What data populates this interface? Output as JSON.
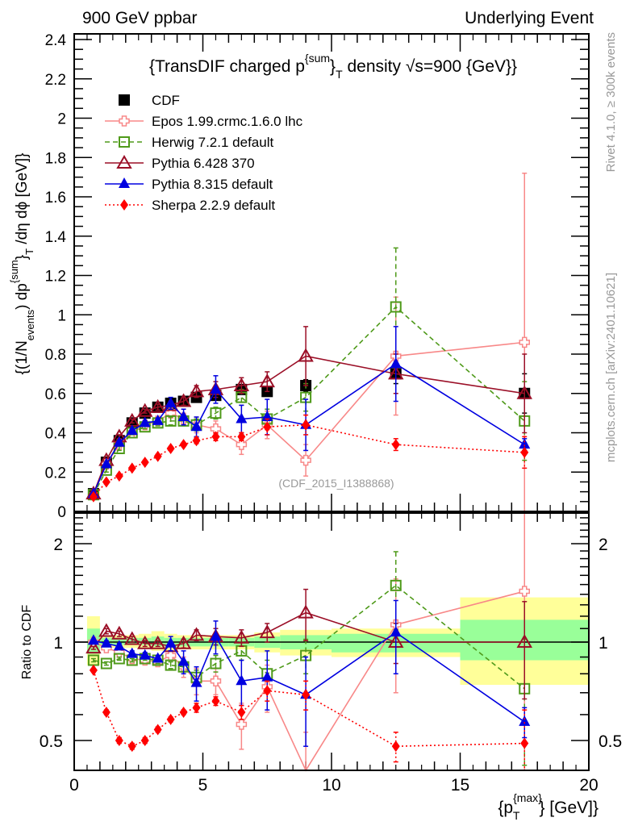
{
  "header": {
    "left_label": "900 GeV ppbar",
    "right_label": "Underlying Event"
  },
  "side_labels": {
    "rivet": "Rivet 4.1.0, ≥ 300k events",
    "mcplots": "mcplots.cern.ch [arXiv:2401.10621]"
  },
  "chart_data": [
    {
      "type": "line",
      "panel": "main",
      "title": "{TransDIF charged p^{sum}_T density √s=900 {GeV}}",
      "title_parts": {
        "pre": "{TransDIF charged p",
        "sup": "{sum",
        "post1": "}",
        "sub": "T",
        "post2": " density √s=900 {GeV}}"
      },
      "xlabel": "{p_T^{max}} [GeV]",
      "ylabel": "{(1/N_events) dp^{sum}_T /dη dϕ [GeV]}",
      "ylabel_parts": {
        "a": "{(1/N",
        "a_sub": "events",
        "b": ") dp",
        "b_sup": "{sum",
        "c": "}",
        "c_sub": "T",
        "d": " /dη  dϕ [GeV]}"
      },
      "xlim": [
        0,
        20
      ],
      "ylim": [
        0,
        2.45
      ],
      "yticks": [
        "0",
        "0.2",
        "0.4",
        "0.6",
        "0.8",
        "1",
        "1.2",
        "1.4",
        "1.6",
        "1.8",
        "2",
        "2.2",
        "2.4"
      ],
      "ytick_values": [
        0,
        0.2,
        0.4,
        0.6,
        0.8,
        1.0,
        1.2,
        1.4,
        1.6,
        1.8,
        2.0,
        2.2,
        2.4
      ],
      "annotation": "(CDF_2015_I1388868)",
      "legend_position": "top-left",
      "x": [
        0.75,
        1.25,
        1.75,
        2.25,
        2.75,
        3.25,
        3.75,
        4.25,
        4.75,
        5.5,
        6.5,
        7.5,
        9.0,
        12.5,
        17.5
      ],
      "series": [
        {
          "name": "CDF",
          "color": "#000000",
          "marker": "square-filled",
          "line": "none",
          "values": [
            0.09,
            0.25,
            0.36,
            0.45,
            0.5,
            0.53,
            0.55,
            0.56,
            0.58,
            0.59,
            0.62,
            0.61,
            0.64,
            0.7,
            0.6
          ],
          "errors": [
            0.01,
            0.01,
            0.01,
            0.01,
            0.01,
            0.01,
            0.01,
            0.01,
            0.01,
            0.02,
            0.02,
            0.02,
            0.03,
            0.05,
            0.1
          ]
        },
        {
          "name": "Epos 1.99.crmc.1.6.0 lhc",
          "color": "#f88888",
          "marker": "cross-open",
          "line": "solid",
          "values": [
            0.085,
            0.24,
            0.34,
            0.4,
            0.44,
            0.46,
            0.5,
            0.47,
            0.44,
            0.42,
            0.34,
            0.44,
            0.26,
            0.79,
            0.86
          ],
          "errors": [
            0.01,
            0.01,
            0.01,
            0.01,
            0.01,
            0.015,
            0.02,
            0.03,
            0.04,
            0.04,
            0.05,
            0.07,
            0.08,
            0.3,
            0.86
          ]
        },
        {
          "name": "Herwig 7.2.1 default",
          "color": "#4f9a1a",
          "marker": "square-open",
          "line": "dashed",
          "values": [
            0.085,
            0.21,
            0.32,
            0.4,
            0.43,
            0.45,
            0.46,
            0.46,
            0.44,
            0.5,
            0.58,
            0.47,
            0.58,
            1.04,
            0.46
          ],
          "errors": [
            0.005,
            0.01,
            0.01,
            0.01,
            0.01,
            0.015,
            0.02,
            0.02,
            0.03,
            0.03,
            0.04,
            0.05,
            0.07,
            0.3,
            0.2
          ]
        },
        {
          "name": "Pythia 6.428 370",
          "color": "#9b0f27",
          "marker": "triangle-open",
          "line": "solid",
          "values": [
            0.09,
            0.26,
            0.38,
            0.46,
            0.51,
            0.53,
            0.54,
            0.56,
            0.61,
            0.62,
            0.64,
            0.66,
            0.79,
            0.7,
            0.6
          ],
          "errors": [
            0.005,
            0.01,
            0.01,
            0.01,
            0.01,
            0.015,
            0.02,
            0.02,
            0.03,
            0.04,
            0.04,
            0.05,
            0.15,
            0.1,
            0.2
          ]
        },
        {
          "name": "Pythia 8.315 default",
          "color": "#0000e0",
          "marker": "triangle-filled",
          "line": "solid",
          "values": [
            0.09,
            0.24,
            0.35,
            0.41,
            0.45,
            0.46,
            0.55,
            0.48,
            0.43,
            0.62,
            0.47,
            0.48,
            0.44,
            0.75,
            0.34
          ],
          "errors": [
            0.005,
            0.01,
            0.01,
            0.01,
            0.01,
            0.015,
            0.03,
            0.04,
            0.05,
            0.07,
            0.07,
            0.09,
            0.13,
            0.19,
            0.03
          ]
        },
        {
          "name": "Sherpa 2.2.9 default",
          "color": "#ff0000",
          "marker": "diamond-filled",
          "line": "dotted",
          "values": [
            0.075,
            0.15,
            0.18,
            0.22,
            0.25,
            0.28,
            0.32,
            0.34,
            0.36,
            0.38,
            0.38,
            0.43,
            0.44,
            0.34,
            0.3
          ],
          "errors": [
            0.005,
            0.005,
            0.005,
            0.005,
            0.01,
            0.01,
            0.01,
            0.01,
            0.015,
            0.02,
            0.02,
            0.04,
            0.05,
            0.03,
            0.08
          ]
        }
      ]
    },
    {
      "type": "line",
      "panel": "ratio",
      "ylabel": "Ratio to CDF",
      "xlabel": "{p_T^{max}} [GeV]",
      "xlabel_parts": {
        "pre": "{p",
        "sup": "{max",
        "sup_close": "}",
        "sub": "T",
        "post": "} [GeV]}"
      },
      "xlim": [
        0,
        20
      ],
      "ylim": [
        0.405,
        2.43
      ],
      "yscale": "log",
      "yticks": [
        "0.5",
        "1",
        "2"
      ],
      "ytick_values": [
        0.5,
        1,
        2
      ],
      "xticks": [
        "0",
        "5",
        "10",
        "15",
        "20"
      ],
      "xtick_values": [
        0,
        5,
        10,
        15,
        20
      ],
      "bands": {
        "bin_edges": [
          0.5,
          1.0,
          1.5,
          2.0,
          2.5,
          3.0,
          3.5,
          4.0,
          4.5,
          5.0,
          6.0,
          7.0,
          8.0,
          10.0,
          15.0,
          20.0
        ],
        "stat_lo": [
          0.92,
          0.98,
          0.98,
          0.98,
          0.98,
          0.97,
          0.97,
          0.97,
          0.97,
          0.97,
          0.97,
          0.96,
          0.95,
          0.93,
          0.88
        ],
        "stat_hi": [
          1.1,
          1.03,
          1.03,
          1.03,
          1.03,
          1.04,
          1.03,
          1.03,
          1.03,
          1.03,
          1.03,
          1.04,
          1.05,
          1.06,
          1.17
        ],
        "total_lo": [
          0.85,
          0.96,
          0.96,
          0.96,
          0.96,
          0.94,
          0.94,
          0.95,
          0.95,
          0.95,
          0.95,
          0.93,
          0.91,
          0.9,
          0.74
        ],
        "total_hi": [
          1.2,
          1.05,
          1.05,
          1.05,
          1.06,
          1.08,
          1.06,
          1.05,
          1.05,
          1.05,
          1.05,
          1.07,
          1.09,
          1.1,
          1.37
        ],
        "stat_color": "#99ff99",
        "total_color": "#ffff99"
      },
      "x": [
        0.75,
        1.25,
        1.75,
        2.25,
        2.75,
        3.25,
        3.75,
        4.25,
        4.75,
        5.5,
        6.5,
        7.5,
        9.0,
        12.5,
        17.5
      ],
      "series": [
        {
          "name": "Epos 1.99.crmc.1.6.0 lhc",
          "color": "#f88888",
          "marker": "cross-open",
          "line": "solid",
          "values": [
            1.0,
            0.96,
            0.93,
            0.89,
            0.88,
            0.87,
            0.91,
            0.84,
            0.76,
            0.76,
            0.56,
            0.73,
            0.4,
            1.13,
            1.43
          ],
          "errors": [
            0.01,
            0.02,
            0.02,
            0.02,
            0.02,
            0.02,
            0.03,
            0.06,
            0.07,
            0.07,
            0.09,
            0.12,
            0.13,
            0.43,
            1.4
          ]
        },
        {
          "name": "Herwig 7.2.1 default",
          "color": "#4f9a1a",
          "marker": "square-open",
          "line": "dashed",
          "values": [
            0.88,
            0.86,
            0.89,
            0.88,
            0.89,
            0.88,
            0.85,
            0.84,
            0.78,
            0.86,
            0.94,
            0.8,
            0.91,
            1.49,
            0.72
          ],
          "errors": [
            0.01,
            0.01,
            0.01,
            0.01,
            0.01,
            0.02,
            0.02,
            0.03,
            0.04,
            0.05,
            0.06,
            0.08,
            0.11,
            0.4,
            0.3
          ]
        },
        {
          "name": "Pythia 6.428 370",
          "color": "#9b0f27",
          "marker": "triangle-open",
          "line": "solid",
          "values": [
            0.96,
            1.08,
            1.06,
            1.02,
            0.99,
            0.99,
            0.97,
            0.99,
            1.05,
            1.04,
            1.03,
            1.07,
            1.23,
            1.0,
            1.0
          ],
          "errors": [
            0.01,
            0.02,
            0.02,
            0.02,
            0.02,
            0.02,
            0.03,
            0.03,
            0.04,
            0.06,
            0.06,
            0.07,
            0.22,
            0.14,
            0.33
          ]
        },
        {
          "name": "Pythia 8.315 default",
          "color": "#0000e0",
          "marker": "triangle-filled",
          "line": "solid",
          "values": [
            1.01,
            0.99,
            0.97,
            0.92,
            0.91,
            0.89,
            0.99,
            0.87,
            0.75,
            1.04,
            0.76,
            0.78,
            0.69,
            1.07,
            0.57
          ],
          "errors": [
            0.01,
            0.02,
            0.02,
            0.02,
            0.02,
            0.02,
            0.05,
            0.07,
            0.09,
            0.12,
            0.12,
            0.16,
            0.21,
            0.27,
            0.06
          ]
        },
        {
          "name": "Sherpa 2.2.9 default",
          "color": "#ff0000",
          "marker": "diamond-filled",
          "line": "dotted",
          "values": [
            0.82,
            0.61,
            0.5,
            0.48,
            0.5,
            0.54,
            0.58,
            0.61,
            0.63,
            0.66,
            0.61,
            0.71,
            0.69,
            0.48,
            0.49
          ],
          "errors": [
            0.01,
            0.01,
            0.01,
            0.01,
            0.01,
            0.01,
            0.01,
            0.01,
            0.02,
            0.02,
            0.03,
            0.05,
            0.07,
            0.05,
            0.13
          ]
        }
      ]
    }
  ]
}
